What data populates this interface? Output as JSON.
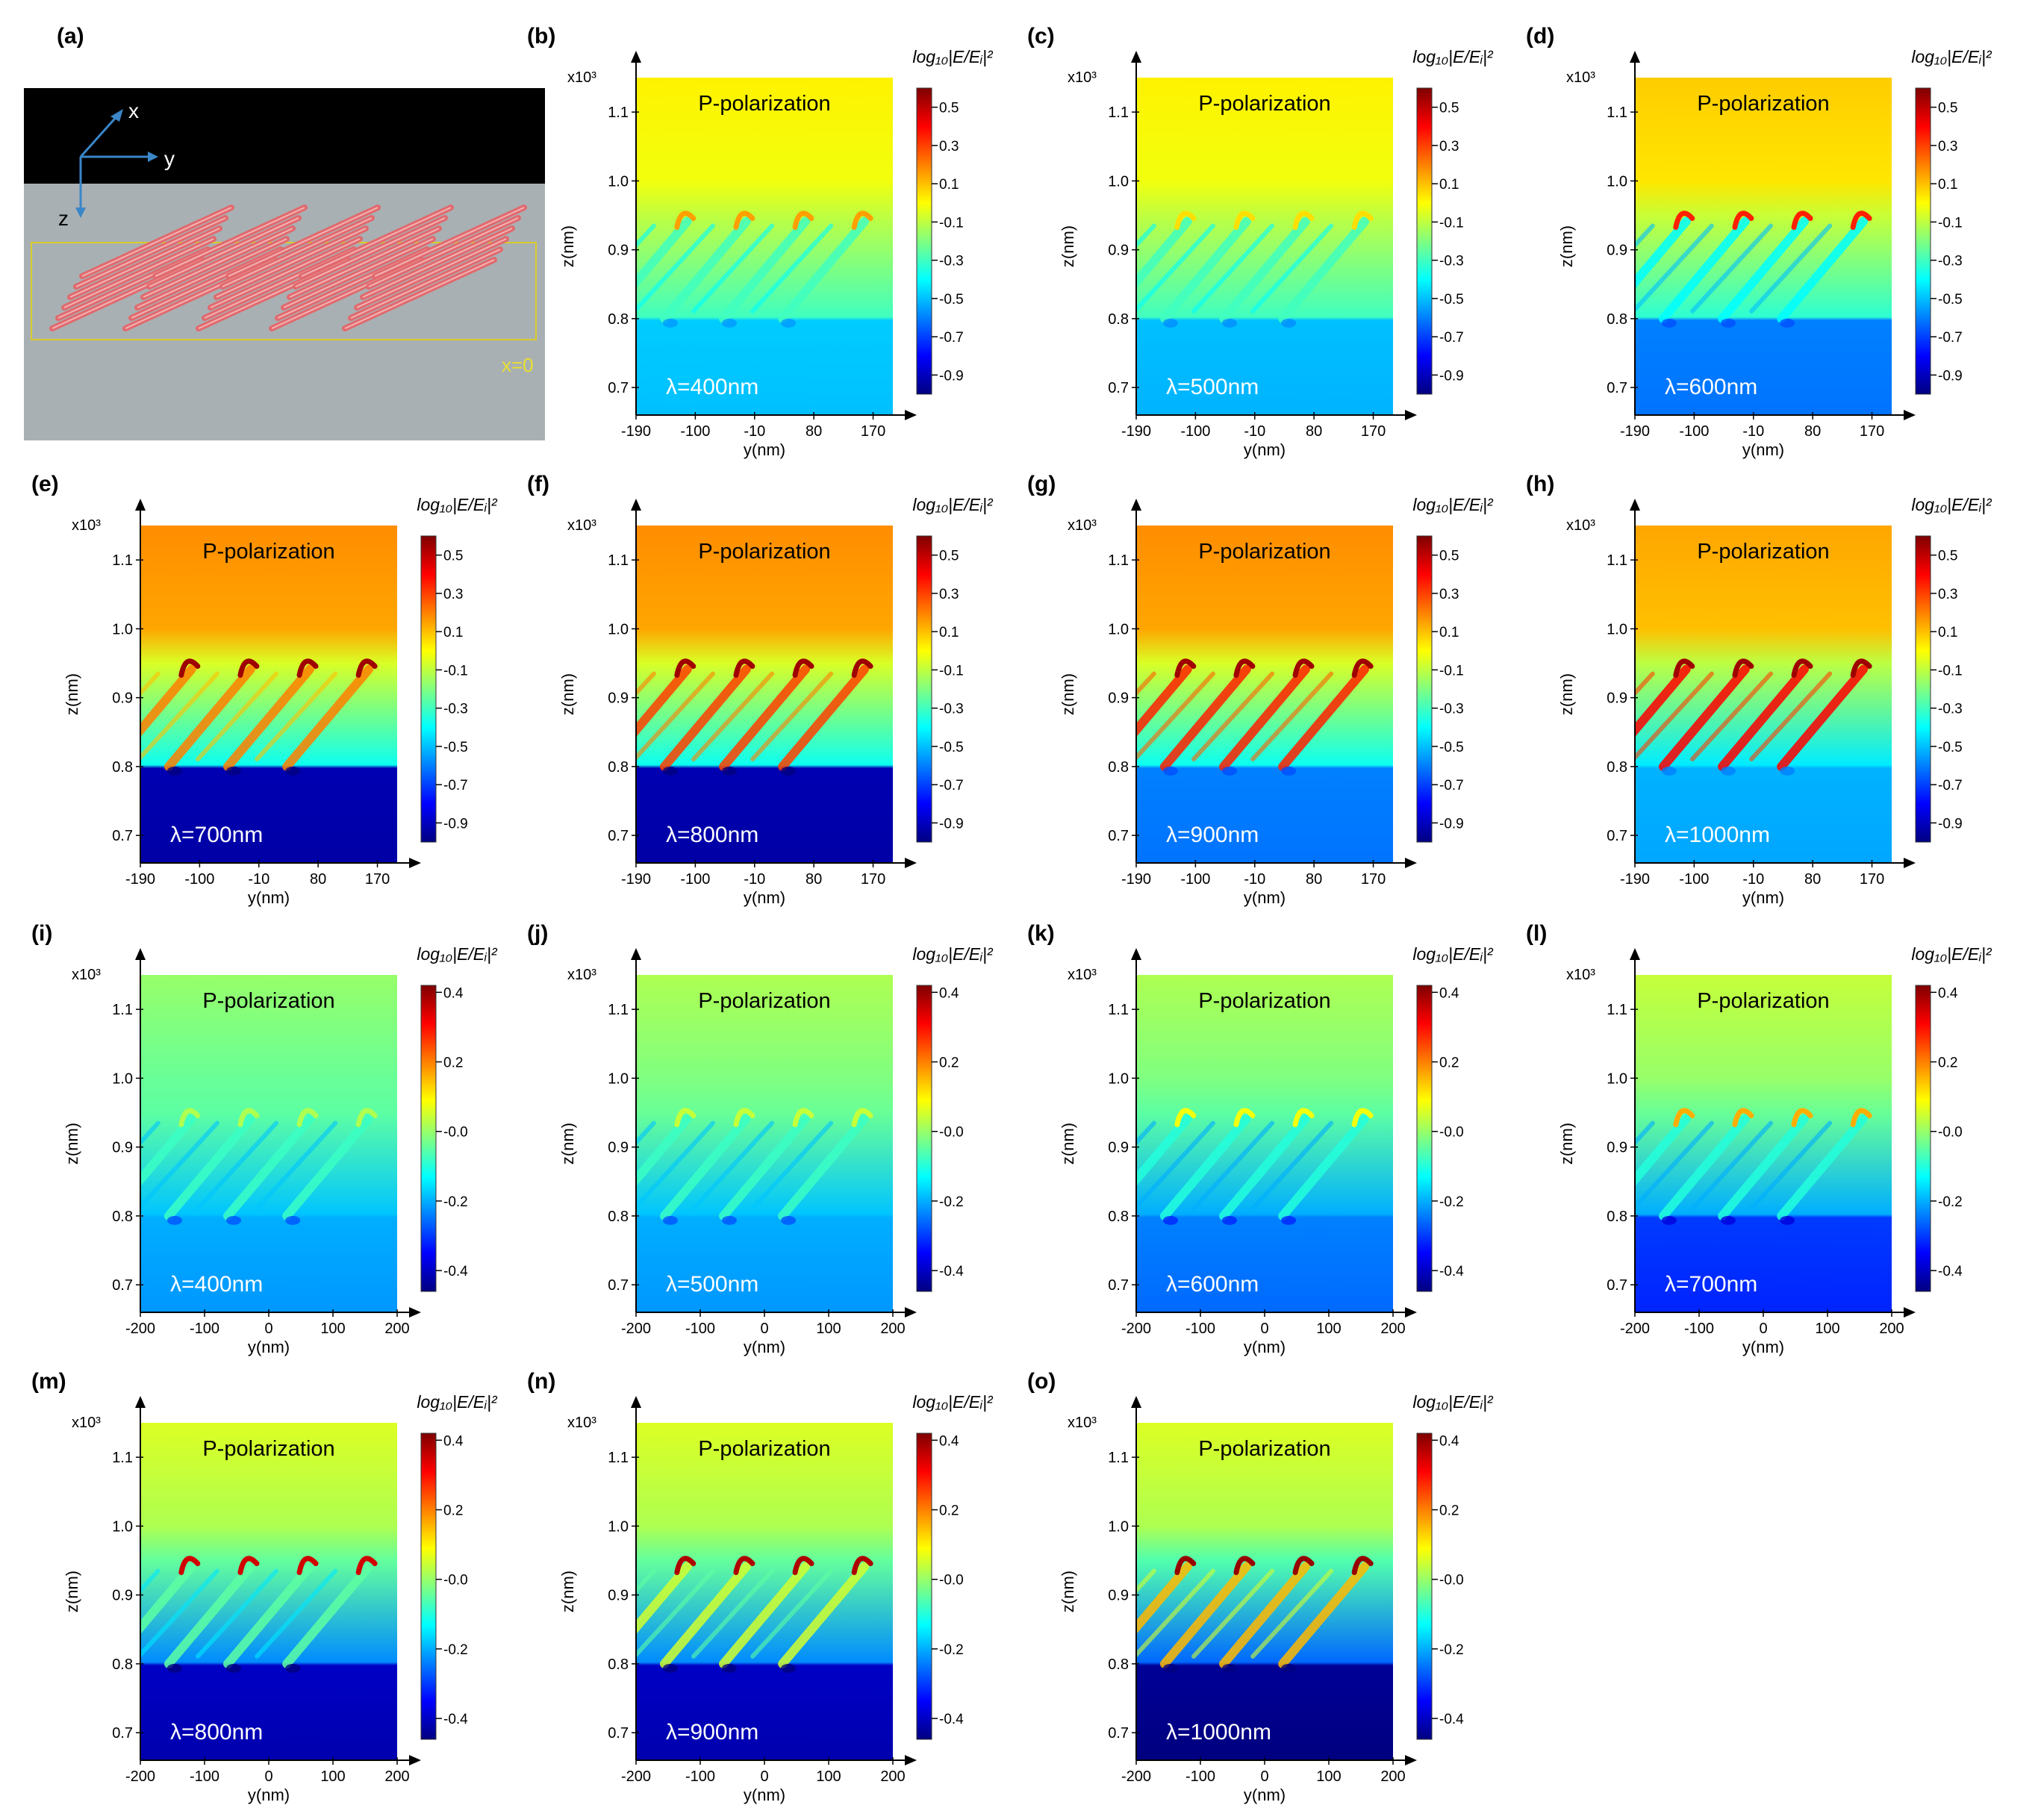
{
  "figure": {
    "panels": [
      {
        "letter": "(a)"
      },
      {
        "letter": "(b)",
        "wavelength": "λ=400nm",
        "set": "A"
      },
      {
        "letter": "(c)",
        "wavelength": "λ=500nm",
        "set": "A"
      },
      {
        "letter": "(d)",
        "wavelength": "λ=600nm",
        "set": "A"
      },
      {
        "letter": "(e)",
        "wavelength": "λ=700nm",
        "set": "A"
      },
      {
        "letter": "(f)",
        "wavelength": "λ=800nm",
        "set": "A"
      },
      {
        "letter": "(g)",
        "wavelength": "λ=900nm",
        "set": "A"
      },
      {
        "letter": "(h)",
        "wavelength": "λ=1000nm",
        "set": "A"
      },
      {
        "letter": "(i)",
        "wavelength": "λ=400nm",
        "set": "B"
      },
      {
        "letter": "(j)",
        "wavelength": "λ=500nm",
        "set": "B"
      },
      {
        "letter": "(k)",
        "wavelength": "λ=600nm",
        "set": "B"
      },
      {
        "letter": "(l)",
        "wavelength": "λ=700nm",
        "set": "B"
      },
      {
        "letter": "(m)",
        "wavelength": "λ=800nm",
        "set": "B"
      },
      {
        "letter": "(n)",
        "wavelength": "λ=900nm",
        "set": "B"
      },
      {
        "letter": "(o)",
        "wavelength": "λ=1000nm",
        "set": "B"
      }
    ]
  },
  "schematic": {
    "axis_x": "x",
    "axis_y": "y",
    "axis_z": "z",
    "plane_label": "x=0",
    "colors": {
      "top": "#000000",
      "bottom": "#a9b0b3",
      "structure": "#e06a6e",
      "axes": "#3a86c8",
      "box": "#d9cc2a"
    }
  },
  "chart_data": {
    "type": "heatmap",
    "panel_title": "P-polarization",
    "colorbar_title": "log₁₀|E/Eᵢ|²",
    "ylabel": "z(nm)",
    "xlabel": "y(nm)",
    "y_multiplier": "x10³",
    "y_ticks": [
      "0.7",
      "0.8",
      "0.9",
      "1.0",
      "1.1"
    ],
    "ylim": [
      0.66,
      1.15
    ],
    "colormap": [
      "#00007f",
      "#0000ff",
      "#0080ff",
      "#00ffff",
      "#80ff80",
      "#ffff00",
      "#ff8000",
      "#ff0000",
      "#7f0000"
    ],
    "sets": {
      "A": {
        "xlim": [
          -190,
          200
        ],
        "x_ticks": [
          "-190",
          "-100",
          "-10",
          "80",
          "170"
        ],
        "x_tick_values": [
          -190,
          -100,
          -10,
          80,
          170
        ],
        "colorbar_ticks": [
          "0.5",
          "0.3",
          "0.1",
          "-0.1",
          "-0.3",
          "-0.5",
          "-0.7",
          "-0.9"
        ],
        "colorbar_range": [
          -1.0,
          0.6
        ]
      },
      "B": {
        "xlim": [
          -200,
          200
        ],
        "x_ticks": [
          "-200",
          "-100",
          "0",
          "100",
          "200"
        ],
        "x_tick_values": [
          -200,
          -100,
          0,
          100,
          200
        ],
        "colorbar_ticks": [
          "0.4",
          "0.2",
          "-0.0",
          "-0.2",
          "-0.4"
        ],
        "colorbar_range": [
          -0.46,
          0.42
        ]
      }
    },
    "fields": [
      {
        "panel": "(b)",
        "top_value": 0.02,
        "mid_value": -0.22,
        "bottom_value": -0.48,
        "hotspot_value": 0.15,
        "streak_value": -0.3
      },
      {
        "panel": "(c)",
        "top_value": 0.02,
        "mid_value": -0.22,
        "bottom_value": -0.5,
        "hotspot_value": 0.05,
        "streak_value": -0.3
      },
      {
        "panel": "(d)",
        "top_value": 0.08,
        "mid_value": -0.25,
        "bottom_value": -0.6,
        "hotspot_value": 0.35,
        "streak_value": -0.4
      },
      {
        "panel": "(e)",
        "top_value": 0.18,
        "mid_value": -0.3,
        "bottom_value": -0.92,
        "hotspot_value": 0.55,
        "streak_value": 0.2
      },
      {
        "panel": "(f)",
        "top_value": 0.18,
        "mid_value": -0.3,
        "bottom_value": -0.92,
        "hotspot_value": 0.55,
        "streak_value": 0.3
      },
      {
        "panel": "(g)",
        "top_value": 0.18,
        "mid_value": -0.3,
        "bottom_value": -0.6,
        "hotspot_value": 0.55,
        "streak_value": 0.35
      },
      {
        "panel": "(h)",
        "top_value": 0.14,
        "mid_value": -0.35,
        "bottom_value": -0.52,
        "hotspot_value": 0.55,
        "streak_value": 0.4
      },
      {
        "panel": "(i)",
        "top_value": 0.0,
        "mid_value": -0.1,
        "bottom_value": -0.2,
        "hotspot_value": 0.02,
        "streak_value": -0.08
      },
      {
        "panel": "(j)",
        "top_value": 0.02,
        "mid_value": -0.1,
        "bottom_value": -0.2,
        "hotspot_value": 0.04,
        "streak_value": -0.08
      },
      {
        "panel": "(k)",
        "top_value": 0.02,
        "mid_value": -0.12,
        "bottom_value": -0.24,
        "hotspot_value": 0.08,
        "streak_value": -0.1
      },
      {
        "panel": "(l)",
        "top_value": 0.04,
        "mid_value": -0.12,
        "bottom_value": -0.3,
        "hotspot_value": 0.16,
        "streak_value": -0.1
      },
      {
        "panel": "(m)",
        "top_value": 0.06,
        "mid_value": -0.15,
        "bottom_value": -0.4,
        "hotspot_value": 0.35,
        "streak_value": -0.05
      },
      {
        "panel": "(n)",
        "top_value": 0.06,
        "mid_value": -0.15,
        "bottom_value": -0.4,
        "hotspot_value": 0.38,
        "streak_value": 0.05
      },
      {
        "panel": "(o)",
        "top_value": 0.06,
        "mid_value": -0.18,
        "bottom_value": -0.44,
        "hotspot_value": 0.4,
        "streak_value": 0.15
      }
    ]
  }
}
